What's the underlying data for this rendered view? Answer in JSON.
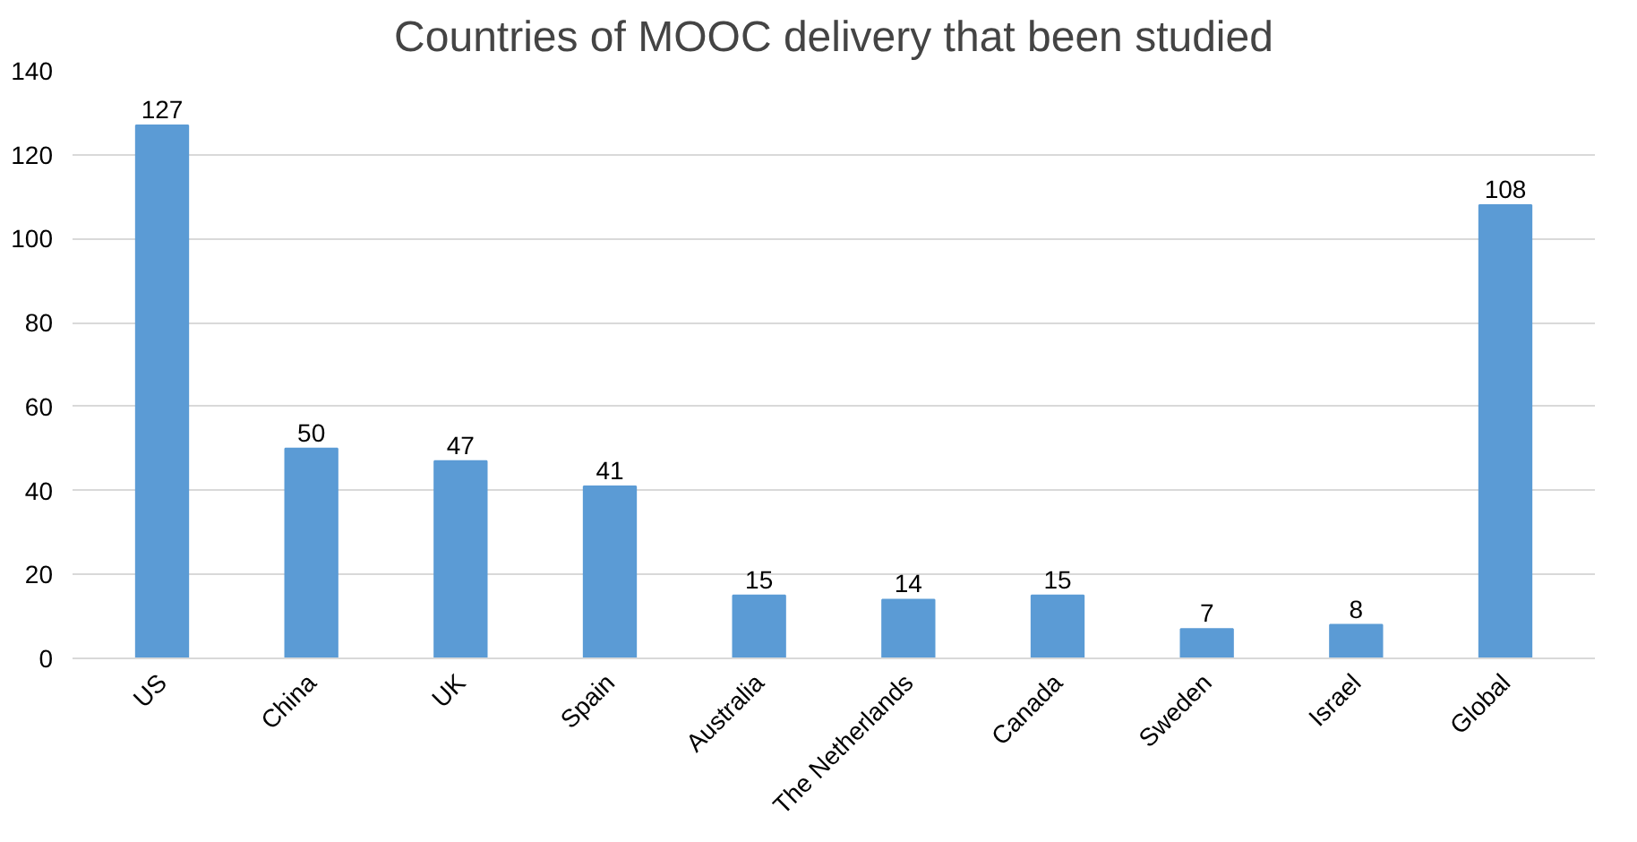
{
  "chart_data": {
    "type": "bar",
    "title": "Countries of MOOC delivery that been studied",
    "categories": [
      "US",
      "China",
      "UK",
      "Spain",
      "Australia",
      "The Netherlands",
      "Canada",
      "Sweden",
      "Israel",
      "Global"
    ],
    "values": [
      127,
      50,
      47,
      41,
      15,
      14,
      15,
      7,
      8,
      108
    ],
    "color": "#5b9bd5",
    "ylim": [
      0,
      140
    ],
    "yticks": [
      0,
      20,
      40,
      60,
      80,
      100,
      120,
      140
    ],
    "grid": "y",
    "data_labels": true
  }
}
